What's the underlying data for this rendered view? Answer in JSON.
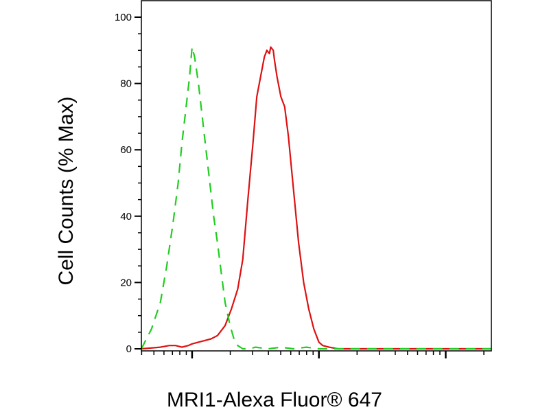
{
  "chart_data": {
    "type": "line",
    "title": "",
    "xlabel": "MRI1-Alexa Fluor® 647",
    "ylabel": "Cell Counts (% Max)",
    "ylim": [
      0,
      100
    ],
    "yticks": [
      "0",
      "20",
      "40",
      "60",
      "80",
      "100"
    ],
    "x_scale": "log",
    "xlim": [
      0.6,
      3.36
    ],
    "xticks_labeled": false,
    "grid": false,
    "legend": "none",
    "series": [
      {
        "color": "#dd1111",
        "style": "solid",
        "x": [
          0.6,
          0.75,
          0.82,
          0.87,
          0.92,
          0.97,
          1.0,
          1.05,
          1.1,
          1.15,
          1.2,
          1.26,
          1.31,
          1.36,
          1.4,
          1.44,
          1.48,
          1.51,
          1.54,
          1.57,
          1.59,
          1.61,
          1.62,
          1.64,
          1.65,
          1.67,
          1.7,
          1.73,
          1.76,
          1.8,
          1.84,
          1.88,
          1.92,
          1.96,
          2.0,
          2.03,
          2.08,
          2.15,
          2.3,
          2.6,
          3.0,
          3.36
        ],
        "y": [
          0,
          0.5,
          1,
          1,
          0.5,
          1,
          1.5,
          2,
          2.5,
          3,
          4,
          7,
          12,
          18,
          27,
          45,
          62,
          76,
          82,
          88,
          90,
          89,
          91,
          90,
          87,
          82,
          76,
          73,
          64,
          48,
          32,
          20,
          12,
          6,
          2,
          1,
          0.5,
          0,
          0,
          0,
          0,
          0
        ]
      },
      {
        "color": "#22cc22",
        "style": "dashed",
        "x": [
          0.6,
          0.68,
          0.75,
          0.8,
          0.85,
          0.89,
          0.92,
          0.95,
          0.98,
          1.0,
          1.02,
          1.05,
          1.08,
          1.11,
          1.14,
          1.17,
          1.2,
          1.23,
          1.26,
          1.3,
          1.33,
          1.36,
          1.4,
          1.45,
          1.5,
          1.6,
          1.7,
          1.8,
          1.9,
          2.0,
          2.2,
          2.6,
          3.0,
          3.36
        ],
        "y": [
          0,
          6,
          14,
          25,
          38,
          50,
          62,
          72,
          82,
          91,
          88,
          80,
          70,
          60,
          50,
          40,
          32,
          23,
          14,
          7,
          3,
          1,
          0,
          0,
          0.5,
          0,
          0.5,
          0,
          0.5,
          0,
          0,
          0,
          0,
          0
        ]
      }
    ]
  }
}
